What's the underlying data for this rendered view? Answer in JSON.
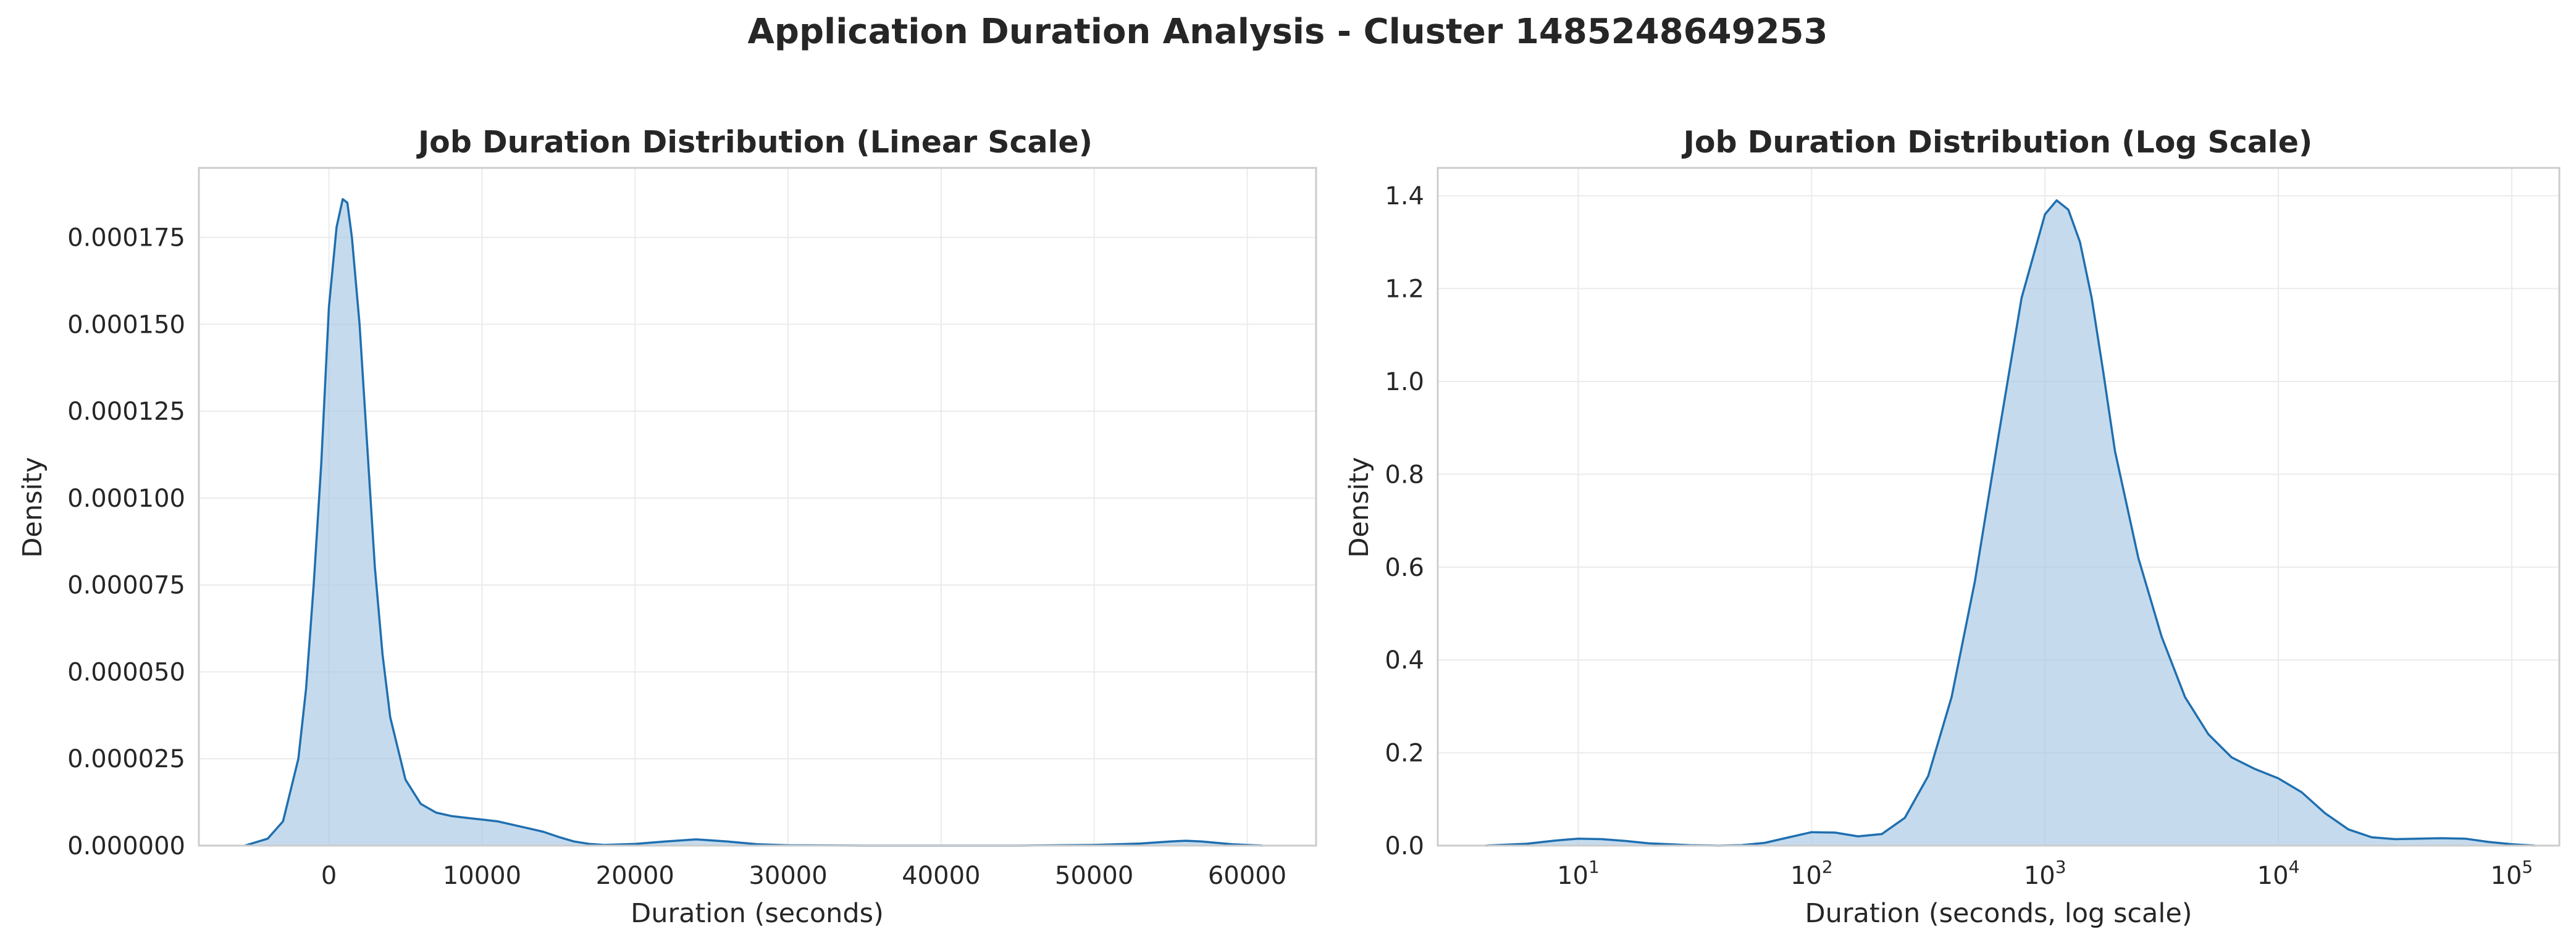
{
  "figure": {
    "suptitle": "Application Duration Analysis - Cluster 1485248649253"
  },
  "style": {
    "line_color": "#1f6fb0",
    "fill_color": "#a6c8e4",
    "grid_color": "#ebebeb",
    "frame_color": "#cccccc"
  },
  "chart_data": [
    {
      "type": "area",
      "title": "Job Duration Distribution (Linear Scale)",
      "xlabel": "Duration (seconds)",
      "ylabel": "Density",
      "xscale": "linear",
      "xlim": [
        -8500,
        64500
      ],
      "ylim": [
        0,
        0.000195
      ],
      "xticks": [
        0,
        10000,
        20000,
        30000,
        40000,
        50000,
        60000
      ],
      "xtick_labels": [
        "0",
        "10000",
        "20000",
        "30000",
        "40000",
        "50000",
        "60000"
      ],
      "yticks": [
        0,
        2.5e-05,
        5e-05,
        7.5e-05,
        0.0001,
        0.000125,
        0.00015,
        0.000175
      ],
      "ytick_labels": [
        "0.000000",
        "0.000025",
        "0.000050",
        "0.000075",
        "0.000100",
        "0.000125",
        "0.000150",
        "0.000175"
      ],
      "grid": true,
      "series": [
        {
          "x": [
            -5500,
            -4000,
            -3000,
            -2000,
            -1500,
            -1000,
            -500,
            0,
            500,
            900,
            1200,
            1500,
            2000,
            2500,
            3000,
            3500,
            4000,
            5000,
            6000,
            7000,
            8000,
            9000,
            10000,
            11000,
            12000,
            13000,
            14000,
            15000,
            16000,
            17000,
            18000,
            20000,
            22000,
            24000,
            26000,
            28000,
            30000,
            35000,
            40000,
            45000,
            50000,
            53000,
            55000,
            56000,
            57000,
            59000,
            61000
          ],
          "y": [
            0.0,
            2e-06,
            7e-06,
            2.5e-05,
            4.5e-05,
            7.5e-05,
            0.00011,
            0.000155,
            0.000178,
            0.000186,
            0.000185,
            0.000175,
            0.00015,
            0.000115,
            8e-05,
            5.5e-05,
            3.7e-05,
            1.9e-05,
            1.2e-05,
            9.5e-06,
            8.5e-06,
            8e-06,
            7.5e-06,
            7e-06,
            6e-06,
            5e-06,
            4e-06,
            2.5e-06,
            1.2e-06,
            5e-07,
            2e-07,
            5e-07,
            1.2e-06,
            1.8e-06,
            1.2e-06,
            4e-07,
            1e-07,
            0.0,
            0.0,
            0.0,
            2e-07,
            6e-07,
            1.2e-06,
            1.4e-06,
            1.2e-06,
            4e-07,
            0.0
          ]
        }
      ]
    },
    {
      "type": "area",
      "title": "Job Duration Distribution (Log Scale)",
      "xlabel": "Duration (seconds, log scale)",
      "ylabel": "Density",
      "xscale": "log",
      "xlim": [
        2.5,
        160000
      ],
      "ylim": [
        0,
        1.46
      ],
      "xticks": [
        10,
        100,
        1000,
        10000,
        100000
      ],
      "xtick_labels": [
        {
          "base": "10",
          "exp": "1"
        },
        {
          "base": "10",
          "exp": "2"
        },
        {
          "base": "10",
          "exp": "3"
        },
        {
          "base": "10",
          "exp": "4"
        },
        {
          "base": "10",
          "exp": "5"
        }
      ],
      "yticks": [
        0,
        0.2,
        0.4,
        0.6,
        0.8,
        1.0,
        1.2,
        1.4
      ],
      "ytick_labels": [
        "0.0",
        "0.2",
        "0.4",
        "0.6",
        "0.8",
        "1.0",
        "1.2",
        "1.4"
      ],
      "grid": true,
      "series": [
        {
          "x": [
            4,
            6,
            8,
            10,
            12.6,
            16,
            20,
            30,
            40,
            50,
            63,
            80,
            100,
            126,
            158,
            200,
            251,
            316,
            398,
            501,
            631,
            794,
            1000,
            1122,
            1259,
            1413,
            1585,
            1778,
            1995,
            2512,
            3162,
            3981,
            5012,
            6310,
            7943,
            10000,
            12589,
            15849,
            19953,
            25119,
            31623,
            39811,
            50119,
            63096,
            79433,
            100000,
            125893
          ],
          "y": [
            0.0,
            0.004,
            0.011,
            0.015,
            0.014,
            0.01,
            0.005,
            0.001,
            0.0,
            0.001,
            0.006,
            0.018,
            0.029,
            0.028,
            0.02,
            0.025,
            0.06,
            0.15,
            0.32,
            0.57,
            0.88,
            1.18,
            1.36,
            1.39,
            1.37,
            1.3,
            1.18,
            1.02,
            0.85,
            0.62,
            0.45,
            0.32,
            0.24,
            0.19,
            0.165,
            0.145,
            0.115,
            0.07,
            0.035,
            0.018,
            0.014,
            0.015,
            0.016,
            0.015,
            0.008,
            0.003,
            0.0
          ]
        }
      ]
    }
  ]
}
